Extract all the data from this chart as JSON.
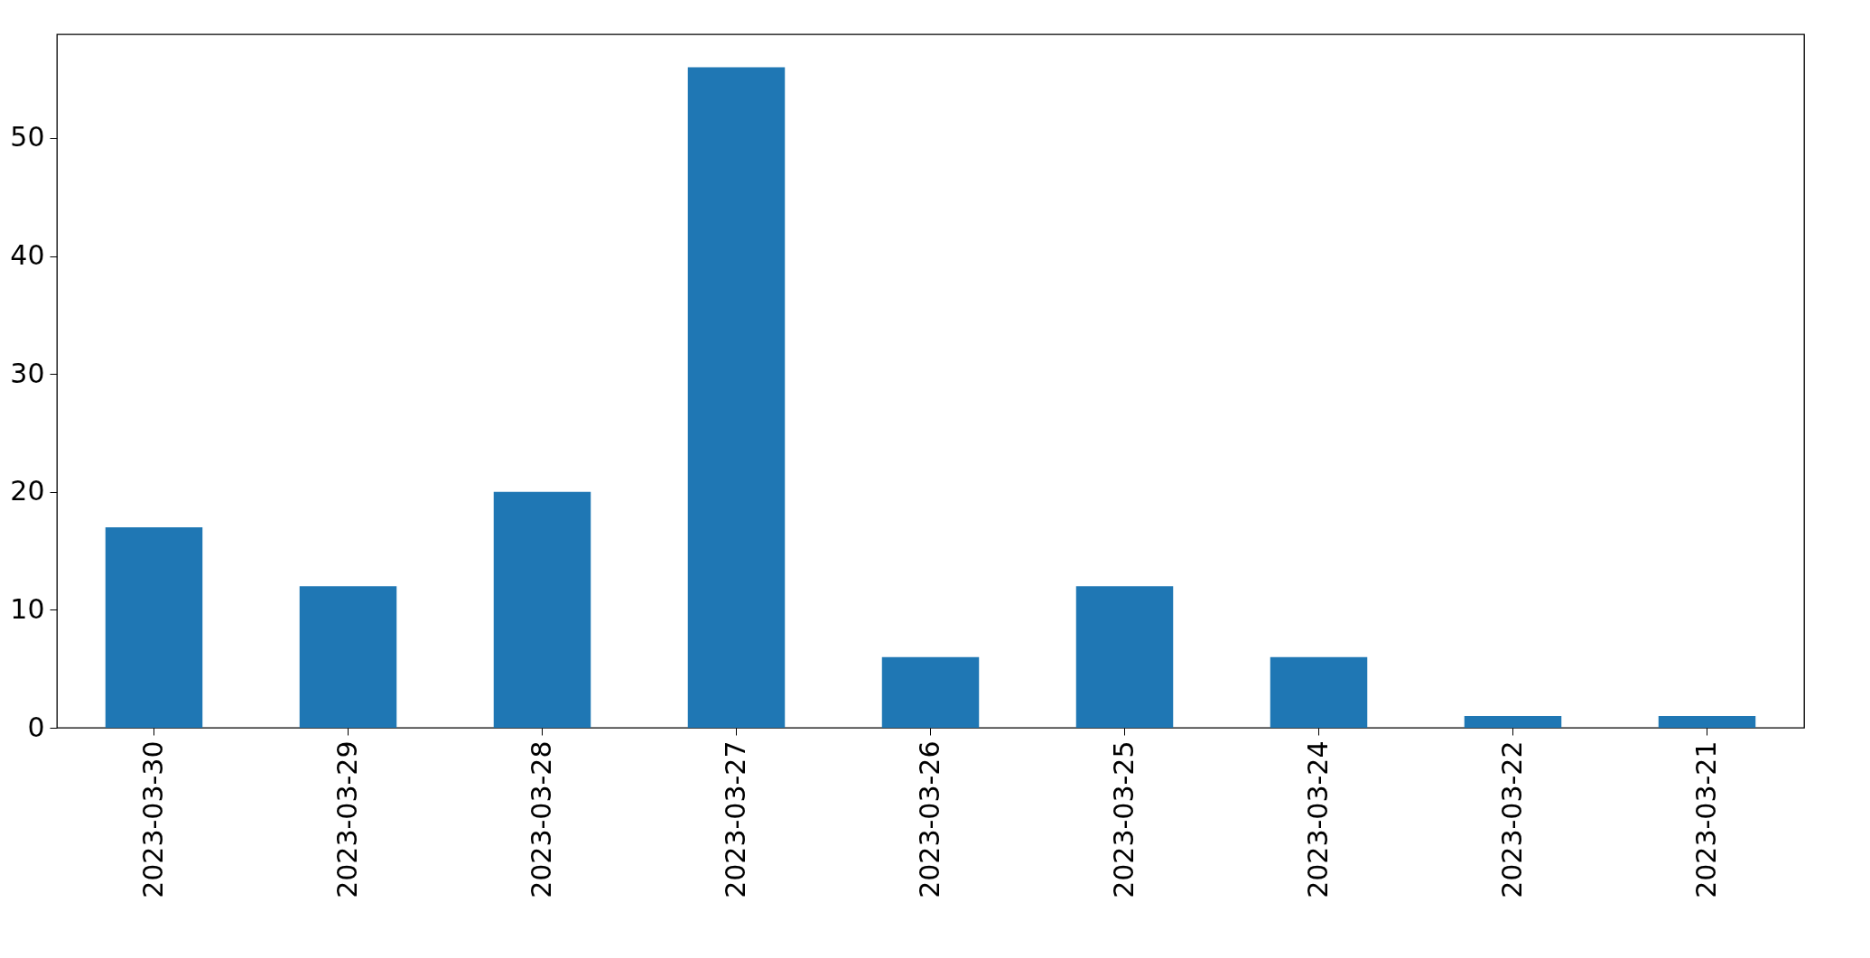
{
  "chart_data": {
    "type": "bar",
    "categories": [
      "2023-03-30",
      "2023-03-29",
      "2023-03-28",
      "2023-03-27",
      "2023-03-26",
      "2023-03-25",
      "2023-03-24",
      "2023-03-22",
      "2023-03-21"
    ],
    "values": [
      17,
      12,
      20,
      56,
      6,
      12,
      6,
      1,
      1
    ],
    "color": "#1f77b4",
    "ylim": [
      0,
      58.8
    ],
    "yticks": [
      0,
      10,
      20,
      30,
      40,
      50
    ],
    "grid": false
  }
}
